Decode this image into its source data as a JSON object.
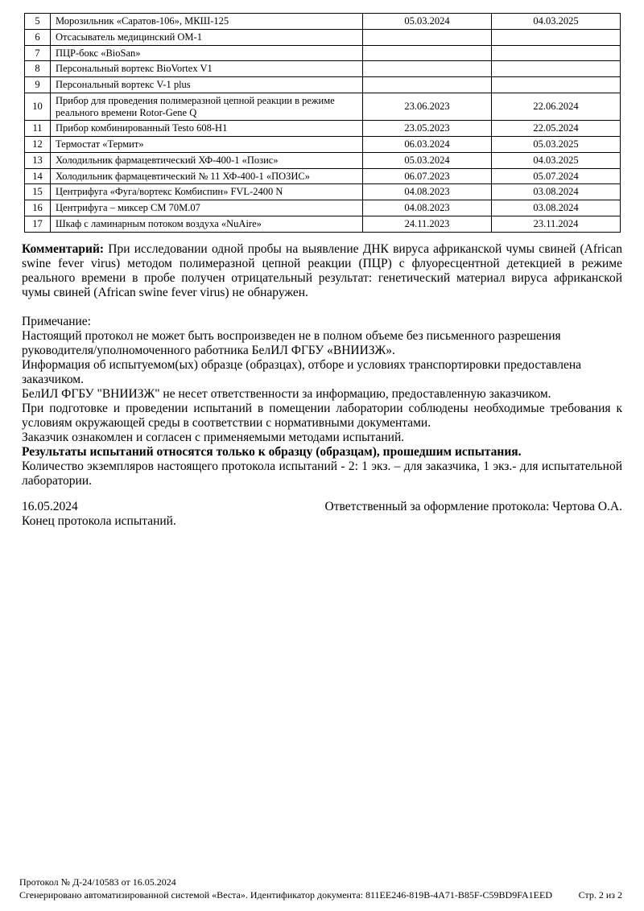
{
  "table": {
    "rows": [
      {
        "num": "5",
        "name": "Морозильник «Саратов-106», МКШ-125",
        "date1": "05.03.2024",
        "date2": "04.03.2025"
      },
      {
        "num": "6",
        "name": "Отсасыватель медицинский ОМ-1",
        "date1": "",
        "date2": ""
      },
      {
        "num": "7",
        "name": "ПЦР-бокс «BioSan»",
        "date1": "",
        "date2": ""
      },
      {
        "num": "8",
        "name": "Персональный вортекс BioVortex V1",
        "date1": "",
        "date2": ""
      },
      {
        "num": "9",
        "name": "Персональный вортекс V-1 plus",
        "date1": "",
        "date2": ""
      },
      {
        "num": "10",
        "name": "Прибор для проведения полимеразной цепной реакции в режиме реального времени Rotor-Gene Q",
        "date1": "23.06.2023",
        "date2": "22.06.2024"
      },
      {
        "num": "11",
        "name": "Прибор комбинированный Testo 608-H1",
        "date1": "23.05.2023",
        "date2": "22.05.2024"
      },
      {
        "num": "12",
        "name": "Термостат «Термит»",
        "date1": "06.03.2024",
        "date2": "05.03.2025"
      },
      {
        "num": "13",
        "name": "Холодильник фармацевтический ХФ-400-1 «Позис»",
        "date1": "05.03.2024",
        "date2": "04.03.2025"
      },
      {
        "num": "14",
        "name": "Холодильник фармацевтический № 11 ХФ-400-1 «ПОЗИС»",
        "date1": "06.07.2023",
        "date2": "05.07.2024"
      },
      {
        "num": "15",
        "name": "Центрифуга «Фуга/вортекс Комбиспин» FVL-2400 N",
        "date1": "04.08.2023",
        "date2": "03.08.2024"
      },
      {
        "num": "16",
        "name": "Центрифуга – миксер СМ 70М.07",
        "date1": "04.08.2023",
        "date2": "03.08.2024"
      },
      {
        "num": "17",
        "name": "Шкаф с ламинарным потоком воздуха «NuAire»",
        "date1": "24.11.2023",
        "date2": "23.11.2024"
      }
    ]
  },
  "comment": {
    "label": "Комментарий:",
    "text": "При исследовании одной пробы на выявление ДНК вируса африканской чумы свиней (African swine fever virus) методом полимеразной цепной реакции (ПЦР) с флуоресцентной детекцией в режиме реального времени в пробе получен отрицательный результат: генетический материал вируса африканской чумы свиней (African swine fever virus) не обнаружен."
  },
  "notes": {
    "label": "Примечание:",
    "paragraphs": [
      {
        "text": "Настоящий протокол не может быть воспроизведен не в полном объеме без письменного разрешения руководителя/уполномоченного работника БелИЛ ФГБУ «ВНИИЗЖ».",
        "bold": false,
        "justify": false
      },
      {
        "text": "Информация об испытуемом(ых) образце (образцах), отборе и условиях транспортировки предоставлена заказчиком.",
        "bold": false,
        "justify": false
      },
      {
        "text": "БелИЛ ФГБУ \"ВНИИЗЖ\" не несет ответственности за информацию, предоставленную заказчиком.",
        "bold": false,
        "justify": false
      },
      {
        "text": "При подготовке и проведении испытаний в помещении лаборатории соблюдены необходимые требования к условиям окружающей среды в соответствии с нормативными документами.",
        "bold": false,
        "justify": true
      },
      {
        "text": "Заказчик ознакомлен и согласен с применяемыми методами испытаний.",
        "bold": false,
        "justify": false
      },
      {
        "text": "Результаты испытаний относятся только к образцу (образцам), прошедшим испытания.",
        "bold": true,
        "justify": false
      },
      {
        "text": "Количество экземпляров настоящего протокола испытаний - 2: 1 экз. – для заказчика, 1 экз.- для испытательной лаборатории.",
        "bold": false,
        "justify": true
      }
    ]
  },
  "signature": {
    "date": "16.05.2024",
    "responsible": "Ответственный за оформление протокола: Чертова О.А.",
    "end_line": "Конец протокола испытаний."
  },
  "footer": {
    "line1": "Протокол № Д-24/10583 от 16.05.2024",
    "line2": "Сгенерировано автоматизированной системой «Веста». Идентификатор документа: 811EE246-819B-4A71-B85F-C59BD9FA1EED",
    "page": "Стр. 2 из 2"
  }
}
